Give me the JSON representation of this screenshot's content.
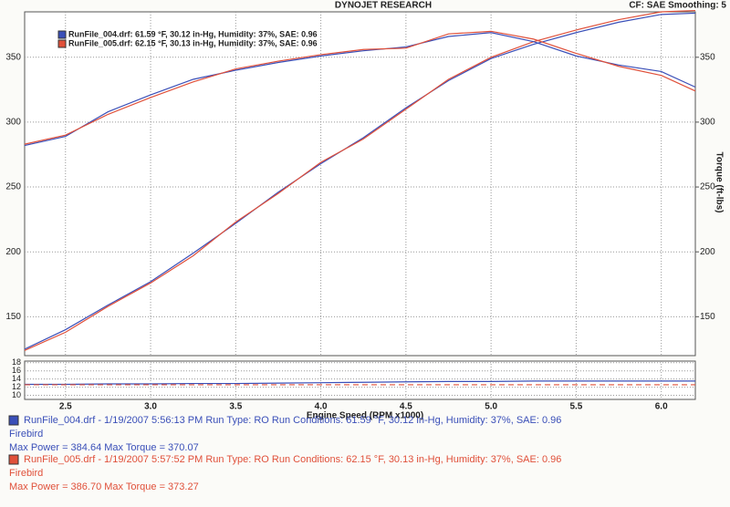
{
  "chart_data": {
    "type": "line",
    "title": "DYNOJET RESEARCH",
    "subtitle": "CF: SAE  Smoothing: 5",
    "xlabel": "Engine Speed (RPM x1000)",
    "y2label": "Torque (ft-lbs)",
    "grid": true,
    "legend": "upper left",
    "x": [
      2.26,
      2.5,
      2.75,
      3.0,
      3.25,
      3.5,
      3.75,
      4.0,
      4.25,
      4.5,
      4.75,
      5.0,
      5.25,
      5.5,
      5.75,
      6.0,
      6.2
    ],
    "xlim": [
      2.26,
      6.2
    ],
    "xticks": [
      2.5,
      {
        "value": 3,
        "label": "3.0"
      },
      3.5,
      {
        "value": 4,
        "label": "4.0"
      },
      4.5,
      {
        "value": 5,
        "label": "5.0"
      },
      5.5,
      {
        "value": 6,
        "label": "6.0"
      }
    ],
    "ylim": [
      120,
      385
    ],
    "yticks": [
      150,
      200,
      250,
      300,
      350
    ],
    "y2lim": [
      120,
      385
    ],
    "y2ticks": [
      150,
      200,
      250,
      300,
      350
    ],
    "series": [
      {
        "name": "RunFile_004.drf: 61.59 °F, 30.12 in-Hg, Humidity: 37%, SAE: 0.96",
        "color": "#3a4fb8",
        "values": [
          125,
          140,
          159,
          177,
          199,
          222,
          246,
          268,
          288,
          311,
          332,
          349,
          360,
          369,
          377,
          383,
          384
        ]
      },
      {
        "name": "RunFile_005.drf: 62.15 °F, 30.13 in-Hg, Humidity: 37%, SAE: 0.96",
        "color": "#e0503a",
        "values": [
          124,
          138,
          158,
          176,
          197,
          223,
          245,
          269,
          287,
          310,
          333,
          350,
          362,
          371,
          379,
          385,
          386
        ]
      },
      {
        "color": "#3a4fb8",
        "axis": "y2",
        "values": [
          282,
          289,
          308,
          321,
          333,
          340,
          346,
          351,
          355,
          358,
          366,
          369,
          362,
          351,
          344,
          339,
          327
        ]
      },
      {
        "color": "#e0503a",
        "axis": "y2",
        "values": [
          283,
          290,
          306,
          319,
          331,
          341,
          347,
          352,
          356,
          357,
          368,
          370,
          364,
          353,
          343,
          336,
          324
        ]
      }
    ],
    "afr": {
      "ylim": [
        9,
        18.4
      ],
      "yticks": [
        10,
        12,
        14,
        16,
        18
      ],
      "series": [
        {
          "color": "#3a4fb8",
          "values": [
            12.7,
            12.7,
            12.8,
            12.8,
            12.9,
            12.9,
            13.0,
            13.1,
            13.2,
            13.3,
            13.4,
            13.4,
            13.5,
            13.5,
            13.5,
            13.5,
            13.5
          ]
        },
        {
          "color": "#e0503a",
          "dashed": true,
          "values": [
            12.6,
            12.6,
            12.6,
            12.6,
            12.6,
            12.6,
            12.6,
            12.6,
            12.6,
            12.6,
            12.6,
            12.6,
            12.6,
            12.6,
            12.6,
            12.6,
            12.6
          ]
        }
      ]
    }
  },
  "run_info": [
    {
      "color": "#3a4fb8",
      "line1": "RunFile_004.drf - 1/19/2007 5:56:13 PM  Run Type: RO  Run Conditions: 61.59 °F, 30.12 in-Hg,  Humidity:  37%, SAE: 0.96",
      "line2": "Firebird",
      "line3": "Max Power = 384.64  Max Torque = 370.07"
    },
    {
      "color": "#e0503a",
      "line1": "RunFile_005.drf - 1/19/2007 5:57:52 PM  Run Type: RO  Run Conditions: 62.15 °F, 30.13 in-Hg,  Humidity:  37%, SAE: 0.96",
      "line2": "Firebird",
      "line3": "Max Power = 386.70  Max Torque = 373.27"
    }
  ]
}
